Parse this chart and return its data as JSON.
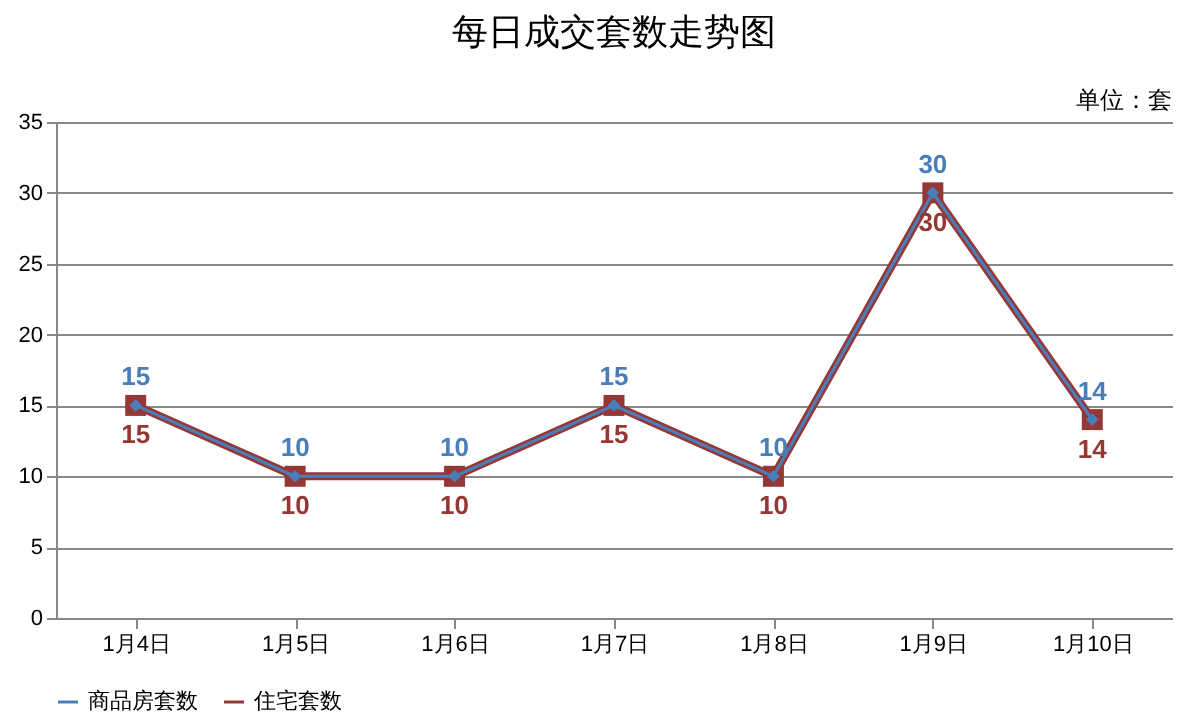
{
  "chart_data": {
    "type": "line",
    "title": "每日成交套数走势图",
    "annotations": [
      "单位：套"
    ],
    "categories": [
      "1月4日",
      "1月5日",
      "1月6日",
      "1月7日",
      "1月8日",
      "1月9日",
      "1月10日"
    ],
    "series": [
      {
        "name": "商品房套数",
        "color": "#4a7ebb",
        "marker": "diamond",
        "values": [
          15,
          10,
          10,
          15,
          10,
          30,
          14
        ]
      },
      {
        "name": "住宅套数",
        "color": "#953735",
        "marker": "square",
        "values": [
          15,
          10,
          10,
          15,
          10,
          30,
          14
        ]
      }
    ],
    "ylim": [
      0,
      35
    ],
    "yticks": [
      0,
      5,
      10,
      15,
      20,
      25,
      30,
      35
    ],
    "grid": "y",
    "legend": "bottom",
    "data_labels": true
  }
}
